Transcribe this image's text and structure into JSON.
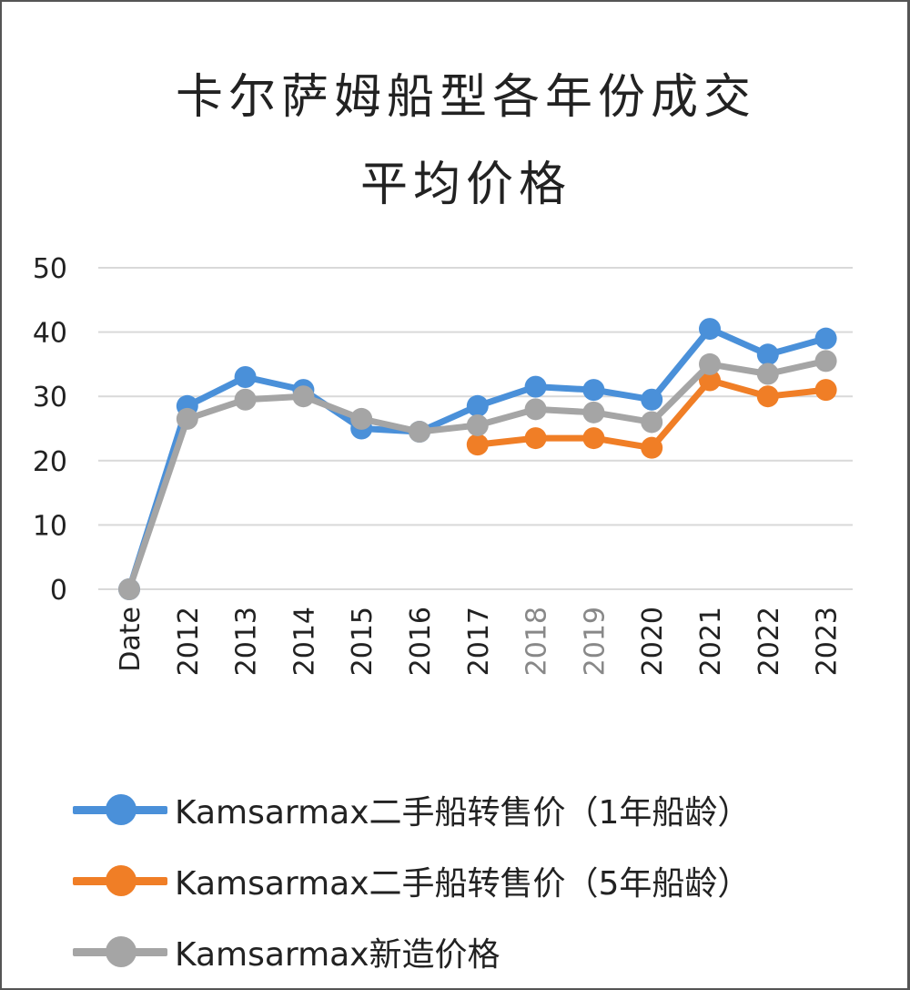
{
  "chart_data": {
    "type": "line",
    "title_line1": "卡尔萨姆船型各年份成交",
    "title_line2": "平均价格",
    "categories": [
      "Date",
      "2012",
      "2013",
      "2014",
      "2015",
      "2016",
      "2017",
      "2018",
      "2019",
      "2020",
      "2021",
      "2022",
      "2023"
    ],
    "category_colors": [
      "#222222",
      "#222222",
      "#222222",
      "#222222",
      "#222222",
      "#222222",
      "#222222",
      "#888888",
      "#888888",
      "#222222",
      "#222222",
      "#222222",
      "#222222"
    ],
    "ylim": [
      0,
      50
    ],
    "yticks": [
      0,
      10,
      20,
      30,
      40,
      50
    ],
    "grid": true,
    "legend_position": "bottom",
    "series": [
      {
        "name": "Kamsarmax二手船转售价（1年船龄）",
        "color": "#4a90d9",
        "values": [
          0,
          28.5,
          33,
          31,
          25,
          24.5,
          28.5,
          31.5,
          31,
          29.5,
          40.5,
          36.5,
          39
        ]
      },
      {
        "name": "Kamsarmax二手船转售价（5年船龄）",
        "color": "#f07e26",
        "values": [
          null,
          null,
          null,
          null,
          null,
          null,
          22.5,
          23.5,
          23.5,
          22,
          32.5,
          30,
          31
        ]
      },
      {
        "name": "Kamsarmax新造价格",
        "color": "#a5a5a5",
        "values": [
          0,
          26.5,
          29.5,
          30,
          26.5,
          24.5,
          25.5,
          28,
          27.5,
          26,
          35,
          33.5,
          35.5
        ]
      }
    ]
  }
}
